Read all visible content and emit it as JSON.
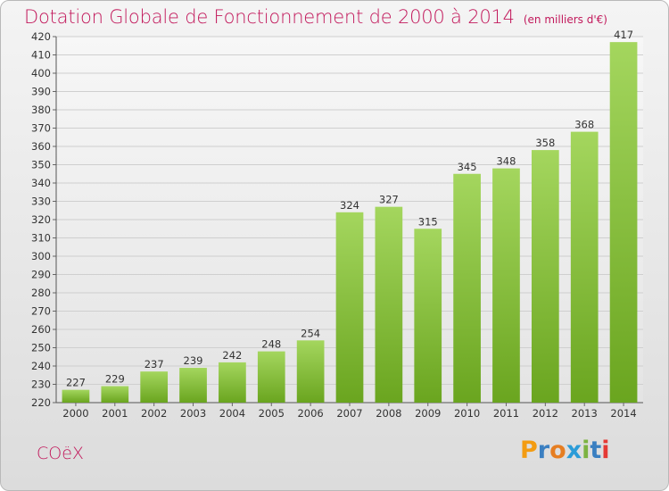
{
  "title": "Dotation Globale de Fonctionnement de 2000 à 2014",
  "unit_note": "(en milliers d'€)",
  "commune": "COëX",
  "logo": {
    "text": "Proxiti",
    "letters": [
      "P",
      "r",
      "o",
      "x",
      "i",
      "t",
      "i"
    ],
    "colors": [
      "#f39c12",
      "#3a7fc1",
      "#e67e22",
      "#2b9cd8",
      "#7cb342",
      "#3a7fc1",
      "#e53935"
    ]
  },
  "colors": {
    "title": "#c2185b",
    "bar_light": "#a4d65e",
    "bar_dark": "#6aa51f"
  },
  "chart_data": {
    "type": "bar",
    "title": "Dotation Globale de Fonctionnement de 2000 à 2014",
    "subtitle": "(en milliers d'€)",
    "categories": [
      "2000",
      "2001",
      "2002",
      "2003",
      "2004",
      "2005",
      "2006",
      "2007",
      "2008",
      "2009",
      "2010",
      "2011",
      "2012",
      "2013",
      "2014"
    ],
    "values": [
      227,
      229,
      237,
      239,
      242,
      248,
      254,
      324,
      327,
      315,
      345,
      348,
      358,
      368,
      417
    ],
    "ylim": [
      220,
      420
    ],
    "yticks": [
      220,
      230,
      240,
      250,
      260,
      270,
      280,
      290,
      300,
      310,
      320,
      330,
      340,
      350,
      360,
      370,
      380,
      390,
      400,
      410,
      420
    ],
    "grid": true,
    "legend": "none"
  }
}
